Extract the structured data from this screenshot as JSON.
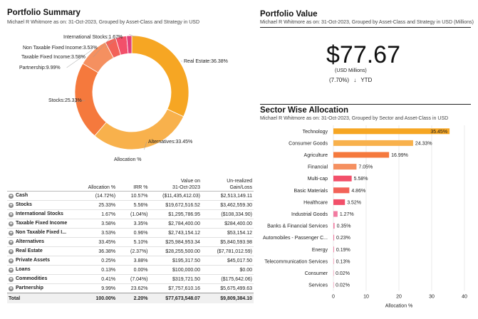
{
  "summary": {
    "title": "Portfolio Summary",
    "subtitle": "Michael R Whitmore as on: 31-Oct-2023, Grouped by Asset-Class and Strategy in USD"
  },
  "donut": {
    "caption": "Allocation %",
    "slices": [
      {
        "label": "Real Estate:36.38%",
        "value": 36.38,
        "color": "#f6a623"
      },
      {
        "label": "Alternatives:33.45%",
        "value": 33.45,
        "color": "#f8b14c"
      },
      {
        "label": "Stocks:25.33%",
        "value": 25.33,
        "color": "#f5793d"
      },
      {
        "label": "Partnership:9.99%",
        "value": 9.99,
        "color": "#f59060"
      },
      {
        "label": "Taxable Fixed Income:3.58%",
        "value": 3.58,
        "color": "#f26258"
      },
      {
        "label": "Non Taxable Fixed Income:3.53%",
        "value": 3.53,
        "color": "#f2506a"
      },
      {
        "label": "International Stocks:1.67%",
        "value": 1.67,
        "color": "#e0407a"
      }
    ]
  },
  "table": {
    "headers": [
      "",
      "Allocation %",
      "IRR %",
      "Value on\n31-Oct-2023",
      "Un-realized\nGain/Loss"
    ],
    "rows": [
      [
        "Cash",
        "(14.72%)",
        "10.57%",
        "($11,435,412.03)",
        "$2,513,149.11"
      ],
      [
        "Stocks",
        "25.33%",
        "5.56%",
        "$19,672,516.52",
        "$3,462,559.30"
      ],
      [
        "International Stocks",
        "1.67%",
        "(1.04%)",
        "$1,295,786.95",
        "($108,334.90)"
      ],
      [
        "Taxable Fixed Income",
        "3.58%",
        "3.35%",
        "$2,784,400.00",
        "$284,400.00"
      ],
      [
        "Non Taxable Fixed I...",
        "3.53%",
        "0.96%",
        "$2,743,154.12",
        "$53,154.12"
      ],
      [
        "Alternatives",
        "33.45%",
        "5.10%",
        "$25,984,953.34",
        "$5,840,593.98"
      ],
      [
        "Real Estate",
        "36.38%",
        "(2.37%)",
        "$28,255,500.00",
        "($7,781,012.59)"
      ],
      [
        "Private Assets",
        "0.25%",
        "3.88%",
        "$195,317.50",
        "$45,017.50"
      ],
      [
        "Loans",
        "0.13%",
        "0.00%",
        "$100,000.00",
        "$0.00"
      ],
      [
        "Commodities",
        "0.41%",
        "(7.04%)",
        "$319,721.50",
        "($175,642.06)"
      ],
      [
        "Partnership",
        "9.99%",
        "23.62%",
        "$7,757,610.16",
        "$5,675,499.63"
      ]
    ],
    "total": [
      "Total",
      "100.00%",
      "2.20%",
      "$77,673,548.07",
      "$9,809,384.10"
    ]
  },
  "value": {
    "title": "Portfolio Value",
    "subtitle": "Michael R Whitmore as on: 31-Oct-2023, Grouped by Asset-Class and Strategy in USD (Millions)",
    "amount": "$77.67",
    "unit": "(USD Millions)",
    "change": "(7.70%)",
    "arrow": "↓",
    "period": "YTD"
  },
  "sector": {
    "title": "Sector Wise Allocation",
    "subtitle": "Michael R Whitmore as on: 31-Oct-2023, Grouped by Sector and Asset-Class in USD"
  },
  "chart_data": {
    "type": "bar",
    "orientation": "horizontal",
    "categories": [
      "Technology",
      "Consumer Goods",
      "Agriculture",
      "Financial",
      "Multi-cap",
      "Basic Materials",
      "Healthcare",
      "Industrial Goods",
      "Banks & Financial Services",
      "Automobiles - Passenger C...",
      "Energy",
      "Telecommunication Services",
      "Consumer",
      "Services"
    ],
    "values": [
      35.45,
      24.33,
      16.99,
      7.05,
      5.58,
      4.86,
      3.52,
      1.27,
      0.35,
      0.23,
      0.19,
      0.13,
      0.02,
      0.02
    ],
    "labels": [
      "35.45%",
      "24.33%",
      "16.99%",
      "7.05%",
      "5.58%",
      "4.86%",
      "3.52%",
      "1.27%",
      "0.35%",
      "0.23%",
      "0.19%",
      "0.13%",
      "0.02%",
      "0.02%"
    ],
    "colors": [
      "#f6a623",
      "#f8b14c",
      "#f5793d",
      "#f59060",
      "#f2506a",
      "#f26258",
      "#f2506a",
      "#f27aa0",
      "#f27aa0",
      "#f27aa0",
      "#f27aa0",
      "#f27aa0",
      "#f27aa0",
      "#f27aa0"
    ],
    "xlabel": "Allocation %",
    "xlim": [
      0,
      40
    ],
    "xticks": [
      "0",
      "10",
      "20",
      "30",
      "40"
    ],
    "grid": true
  }
}
